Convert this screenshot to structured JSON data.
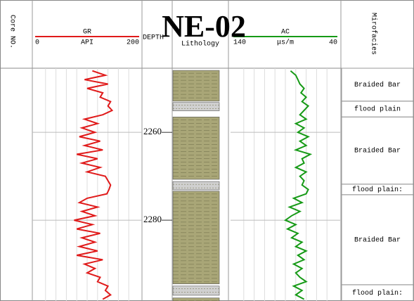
{
  "chart_data": {
    "type": "well-log",
    "title": "NE-02",
    "core_label": "Core NO.",
    "depth_label": "DEPTH",
    "lithology_label": "Lithology",
    "facies_label": "Mirofacies",
    "ylim": [
      2245.4,
      2298.4
    ],
    "yticks": [
      2260,
      2280
    ],
    "depth": [
      2246,
      2247,
      2248,
      2249,
      2250,
      2251,
      2252,
      2253,
      2254,
      2255,
      2256,
      2257,
      2258,
      2259,
      2260,
      2261,
      2262,
      2263,
      2264,
      2265,
      2266,
      2267,
      2268,
      2269,
      2270,
      2271,
      2272,
      2273,
      2274,
      2275,
      2276,
      2277,
      2278,
      2279,
      2280,
      2281,
      2282,
      2283,
      2284,
      2285,
      2286,
      2287,
      2288,
      2289,
      2290,
      2291,
      2292,
      2293,
      2294,
      2295,
      2296,
      2297,
      2298
    ],
    "series": [
      {
        "name": "GR",
        "unit": "API",
        "color": "#e01a1a",
        "xlim": [
          0,
          200
        ],
        "values": [
          110,
          135,
          95,
          140,
          100,
          130,
          125,
          145,
          140,
          148,
          130,
          95,
          120,
          90,
          115,
          85,
          125,
          95,
          130,
          80,
          120,
          90,
          125,
          100,
          135,
          140,
          145,
          142,
          138,
          100,
          85,
          120,
          90,
          115,
          75,
          110,
          80,
          125,
          90,
          115,
          85,
          120,
          80,
          130,
          95,
          115,
          100,
          125,
          120,
          140,
          135,
          145,
          130
        ]
      },
      {
        "name": "AC",
        "unit": "μs/m",
        "color": "#169a16",
        "xlim": [
          140,
          40
        ],
        "values": [
          85,
          80,
          78,
          76,
          72,
          75,
          70,
          74,
          68,
          72,
          76,
          70,
          80,
          72,
          78,
          68,
          76,
          70,
          80,
          66,
          74,
          72,
          80,
          70,
          76,
          72,
          74,
          68,
          70,
          82,
          74,
          86,
          76,
          84,
          90,
          80,
          88,
          78,
          84,
          74,
          80,
          70,
          78,
          72,
          82,
          74,
          80,
          76,
          70,
          82,
          74,
          80,
          72
        ]
      }
    ],
    "lithology": [
      {
        "color": "#a9a677",
        "intervals": [
          {
            "top": 2245.9,
            "bottom": 2252.9
          },
          {
            "top": 2256.5,
            "bottom": 2270.7
          },
          {
            "top": 2273.4,
            "bottom": 2294.5
          },
          {
            "top": 2297.7,
            "bottom": 2298.4
          }
        ]
      },
      {
        "color": "#d0d0d0",
        "intervals": [
          {
            "top": 2253.2,
            "bottom": 2255.1
          },
          {
            "top": 2271.2,
            "bottom": 2273.1
          },
          {
            "top": 2295.0,
            "bottom": 2297.1
          }
        ]
      }
    ],
    "facies": [
      {
        "label": "Braided Bar",
        "top": 2245.4,
        "bottom": 2252.9
      },
      {
        "label": "flood plain",
        "top": 2252.9,
        "bottom": 2256.5
      },
      {
        "label": "Braided Bar",
        "top": 2256.5,
        "bottom": 2271.8
      },
      {
        "label": "flood plain:",
        "top": 2271.8,
        "bottom": 2274.2
      },
      {
        "label": "Braided Bar",
        "top": 2274.2,
        "bottom": 2294.7
      },
      {
        "label": "flood plain:",
        "top": 2294.7,
        "bottom": 2298.4
      }
    ]
  }
}
